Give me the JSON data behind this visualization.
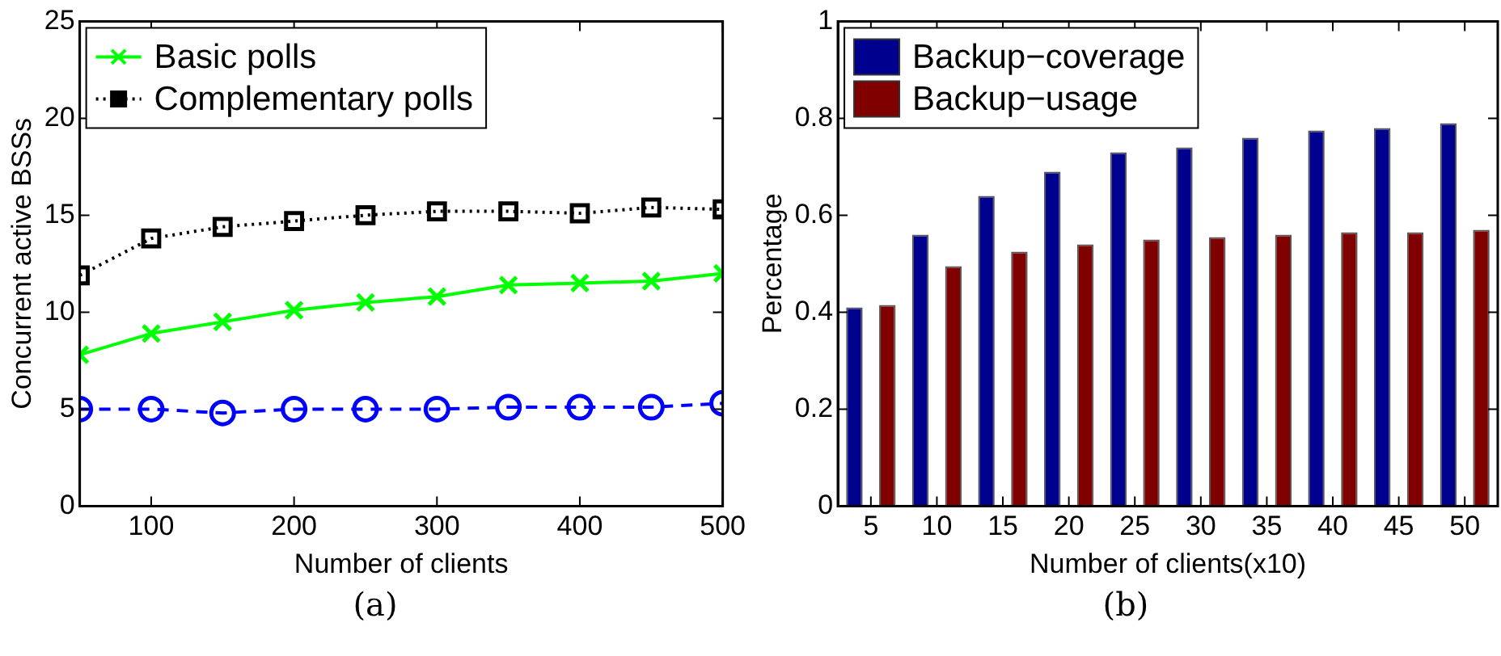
{
  "chart_data": [
    {
      "type": "line",
      "xlabel": "Number of clients",
      "ylabel": "Concurrent active BSSs",
      "x": [
        50,
        100,
        150,
        200,
        250,
        300,
        350,
        400,
        450,
        500
      ],
      "xlim": [
        50,
        500
      ],
      "xticks": [
        100,
        200,
        300,
        400,
        500
      ],
      "ylim": [
        0,
        25
      ],
      "yticks": [
        0,
        5,
        10,
        15,
        20,
        25
      ],
      "grid": false,
      "legend": "top left",
      "annotations": [
        "(a)"
      ],
      "series": [
        {
          "name": "Basic polls",
          "color": "#00ff00",
          "marker": "cross",
          "line_style": "solid",
          "values": [
            7.8,
            8.9,
            9.5,
            10.1,
            10.5,
            10.8,
            11.4,
            11.5,
            11.6,
            12.0
          ]
        },
        {
          "color": "#0000ff",
          "marker": "circle",
          "line_style": "dashed",
          "values": [
            5.0,
            5.0,
            4.8,
            5.0,
            5.0,
            5.0,
            5.1,
            5.1,
            5.1,
            5.3
          ]
        },
        {
          "name": "Complementary polls",
          "color": "#000000",
          "marker": "square",
          "line_style": "dotted",
          "values": [
            11.9,
            13.8,
            14.4,
            14.7,
            15.0,
            15.2,
            15.2,
            15.1,
            15.4,
            15.3
          ]
        }
      ]
    },
    {
      "type": "bar",
      "xlabel": "Number of clients(x10)",
      "ylabel": "Percentage",
      "categories": [
        "5",
        "10",
        "15",
        "20",
        "25",
        "30",
        "35",
        "40",
        "45",
        "50"
      ],
      "ylim": [
        0,
        1
      ],
      "yticks": [
        0,
        0.2,
        0.4,
        0.6,
        0.8,
        1
      ],
      "grid": false,
      "legend": "top left",
      "annotations": [
        "(b)"
      ],
      "series": [
        {
          "name": "Backup−coverage",
          "color": "#00008f",
          "values": [
            0.41,
            0.56,
            0.64,
            0.69,
            0.73,
            0.74,
            0.76,
            0.775,
            0.78,
            0.79
          ]
        },
        {
          "name": "Backup−usage",
          "color": "#800000",
          "values": [
            0.415,
            0.495,
            0.525,
            0.54,
            0.55,
            0.555,
            0.56,
            0.565,
            0.565,
            0.57
          ]
        }
      ]
    }
  ]
}
